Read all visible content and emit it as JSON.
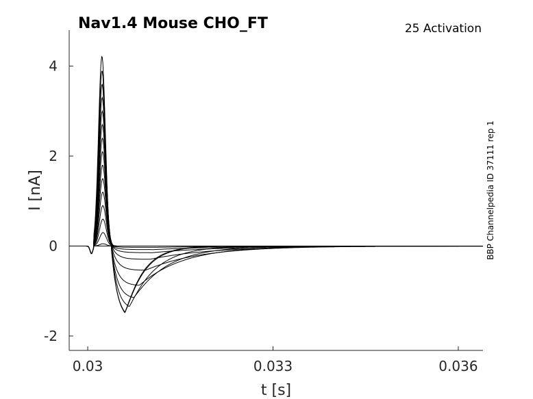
{
  "chart_data": {
    "type": "line",
    "title": "Nav1.4  Mouse  CHO_FT",
    "subtitle": "25  Activation",
    "side_label": "BBP Channelpedia ID 37111 rep 1",
    "xlabel": "t [s]",
    "ylabel": "I [nA]",
    "xlim": [
      0.0297,
      0.0364
    ],
    "ylim": [
      -2.32,
      4.8
    ],
    "xticks": [
      0.03,
      0.033,
      0.036
    ],
    "xtick_labels": [
      "0.03",
      "0.033",
      "0.036"
    ],
    "yticks": [
      -2,
      0,
      2,
      4
    ],
    "ytick_labels": [
      "-2",
      "0",
      "2",
      "4"
    ],
    "grid": false,
    "legend": "none",
    "series_shape": {
      "onset": 0.0301,
      "dip_time": 0.03006,
      "dip_depth": -0.17,
      "step_end": 0.0364
    },
    "series": [
      {
        "peak": 4.22,
        "inward": 0.0
      },
      {
        "peak": 3.9,
        "inward": 0.0
      },
      {
        "peak": 3.6,
        "inward": 0.0
      },
      {
        "peak": 3.3,
        "inward": 0.0
      },
      {
        "peak": 3.0,
        "inward": 0.0
      },
      {
        "peak": 2.7,
        "inward": 0.0
      },
      {
        "peak": 2.4,
        "inward": -0.03
      },
      {
        "peak": 2.1,
        "inward": -0.08
      },
      {
        "peak": 1.8,
        "inward": -0.15
      },
      {
        "peak": 1.5,
        "inward": -0.3
      },
      {
        "peak": 1.2,
        "inward": -0.55
      },
      {
        "peak": 0.9,
        "inward": -0.9
      },
      {
        "peak": 0.6,
        "inward": -1.2
      },
      {
        "peak": 0.3,
        "inward": -1.45
      },
      {
        "peak": 0.05,
        "inward": -1.68
      },
      {
        "peak": 0.0,
        "inward": -1.7
      }
    ]
  }
}
